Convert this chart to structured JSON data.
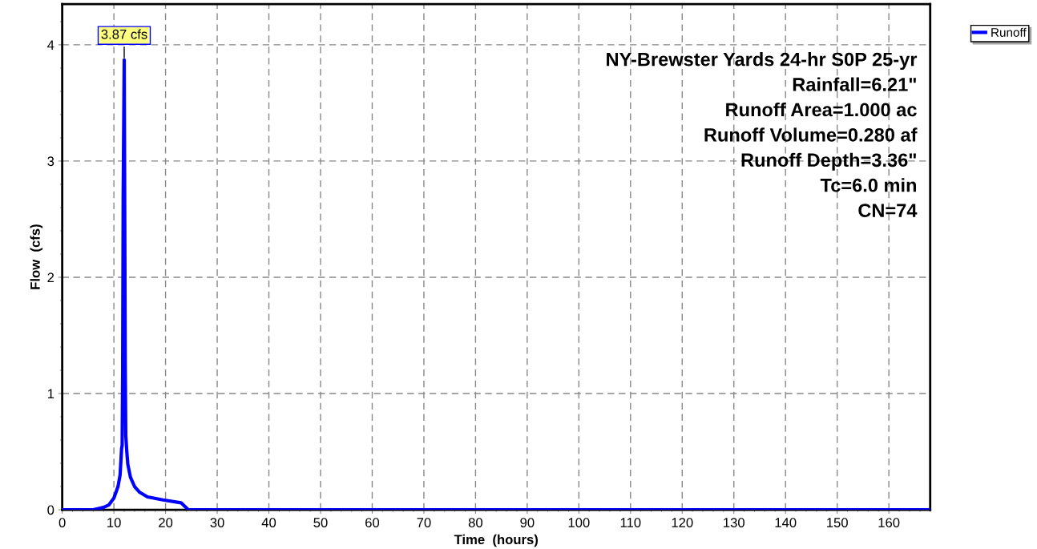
{
  "chart_data": {
    "type": "line",
    "title": "NY-Brewster Yards 24-hr S0P 25-yr",
    "xlabel": "Time  (hours)",
    "ylabel": "Flow  (cfs)",
    "annotations": [
      {
        "text": "3.87 cfs",
        "x": 12.0,
        "y": 3.87
      },
      "Rainfall=6.21\"",
      "Runoff Area=1.000 ac",
      "Runoff Volume=0.280 af",
      "Runoff Depth=3.36\"",
      "Tc=6.0 min",
      "CN=74"
    ],
    "x": [
      0,
      6,
      8,
      9,
      10,
      10.8,
      11.2,
      11.5,
      11.6,
      11.7,
      11.8,
      12.0,
      12.2,
      12.3,
      12.5,
      12.7,
      13.2,
      14,
      15,
      16.5,
      19.5,
      23,
      24.4,
      168
    ],
    "series": [
      {
        "name": "Runoff",
        "color": "#0000ff",
        "values": [
          0,
          0,
          0.02,
          0.04,
          0.1,
          0.2,
          0.3,
          0.53,
          0.55,
          1.2,
          2.7,
          3.87,
          1.23,
          0.64,
          0.5,
          0.39,
          0.28,
          0.2,
          0.15,
          0.11,
          0.085,
          0.06,
          0,
          0
        ]
      }
    ],
    "xlim": [
      0,
      168
    ],
    "xticks": [
      0,
      10,
      20,
      30,
      40,
      50,
      60,
      70,
      80,
      90,
      100,
      110,
      120,
      130,
      140,
      150,
      160
    ],
    "ylim": [
      0,
      4.35
    ],
    "yticks": [
      0,
      1,
      2,
      3,
      4
    ],
    "grid": true,
    "legend": "top right",
    "marker": "none",
    "line_style": "solid"
  }
}
